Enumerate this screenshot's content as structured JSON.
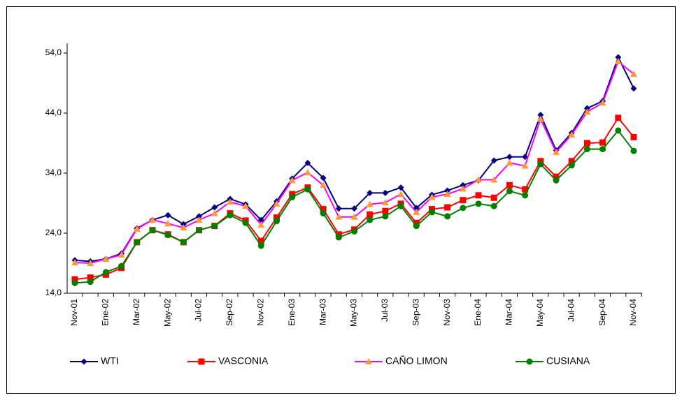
{
  "chart_data": {
    "type": "line",
    "categories": [
      "Nov-01",
      null,
      "Ene-02",
      null,
      "Mar-02",
      null,
      "May-02",
      null,
      "Jul-02",
      null,
      "Sep-02",
      null,
      "Nov-02",
      null,
      "Ene-03",
      null,
      "Mar-03",
      null,
      "May-03",
      null,
      "Jul-03",
      null,
      "Sep-03",
      null,
      "Nov-03",
      null,
      "Ene-04",
      null,
      "Mar-04",
      null,
      "May-04",
      null,
      "Jul-04",
      null,
      "Sep-04",
      null,
      "Nov-04"
    ],
    "ylim": [
      14,
      55.6
    ],
    "yticks": [
      {
        "value": 14,
        "label": "14,0"
      },
      {
        "value": 24,
        "label": "24,0"
      },
      {
        "value": 34,
        "label": "34,0"
      },
      {
        "value": 44,
        "label": "44,0"
      },
      {
        "value": 54,
        "label": "54,0"
      }
    ],
    "grid": false,
    "legend": "bottom",
    "series": [
      {
        "name": "WTI",
        "color": "#000080",
        "marker": "diamond",
        "marker_color": "#000080",
        "values": [
          19.5,
          19.3,
          19.7,
          20.6,
          24.8,
          26.2,
          27.0,
          25.5,
          26.8,
          28.3,
          29.7,
          28.8,
          26.2,
          29.3,
          33.1,
          35.7,
          33.2,
          28.1,
          28.1,
          30.7,
          30.7,
          31.6,
          28.2,
          30.4,
          31.1,
          32.0,
          32.8,
          36.1,
          36.7,
          36.7,
          43.7,
          37.8,
          40.7,
          44.8,
          46.0,
          53.3,
          48.1
        ]
      },
      {
        "name": "VASCONIA",
        "color": "#ff0000",
        "marker": "square",
        "marker_color": "#ff0000",
        "values": [
          16.3,
          16.6,
          17.1,
          18.2,
          22.5,
          24.5,
          23.8,
          22.5,
          24.5,
          25.2,
          27.3,
          26.1,
          22.7,
          26.6,
          30.5,
          31.6,
          28.0,
          23.8,
          24.6,
          27.1,
          27.7,
          28.9,
          25.7,
          28.0,
          28.3,
          29.5,
          30.3,
          29.9,
          32.0,
          31.3,
          36.0,
          33.4,
          36.0,
          39.0,
          39.1,
          43.2,
          40.0
        ]
      },
      {
        "name": "CAÑO LIMON",
        "color": "#ff00ff",
        "marker": "triangle",
        "marker_color": "#ff9933",
        "values": [
          19.1,
          19.0,
          19.7,
          20.4,
          24.7,
          26.2,
          25.6,
          24.9,
          26.2,
          27.3,
          29.2,
          28.5,
          25.4,
          28.9,
          32.8,
          34.1,
          32.0,
          26.7,
          26.7,
          28.8,
          29.1,
          30.5,
          27.5,
          30.0,
          30.5,
          31.4,
          32.9,
          32.9,
          35.7,
          35.2,
          43.0,
          37.5,
          40.4,
          44.2,
          45.7,
          52.6,
          50.5
        ]
      },
      {
        "name": "CUSIANA",
        "color": "#008000",
        "marker": "circle",
        "marker_color": "#008000",
        "values": [
          15.7,
          15.9,
          17.5,
          18.5,
          22.5,
          24.5,
          23.7,
          22.5,
          24.5,
          25.2,
          27.0,
          25.7,
          21.9,
          26.0,
          30.0,
          31.3,
          27.3,
          23.3,
          24.3,
          26.2,
          26.8,
          28.5,
          25.2,
          27.5,
          26.8,
          28.2,
          28.9,
          28.5,
          31.0,
          30.3,
          35.5,
          32.8,
          35.3,
          38.0,
          38.0,
          41.1,
          37.7
        ]
      }
    ]
  }
}
